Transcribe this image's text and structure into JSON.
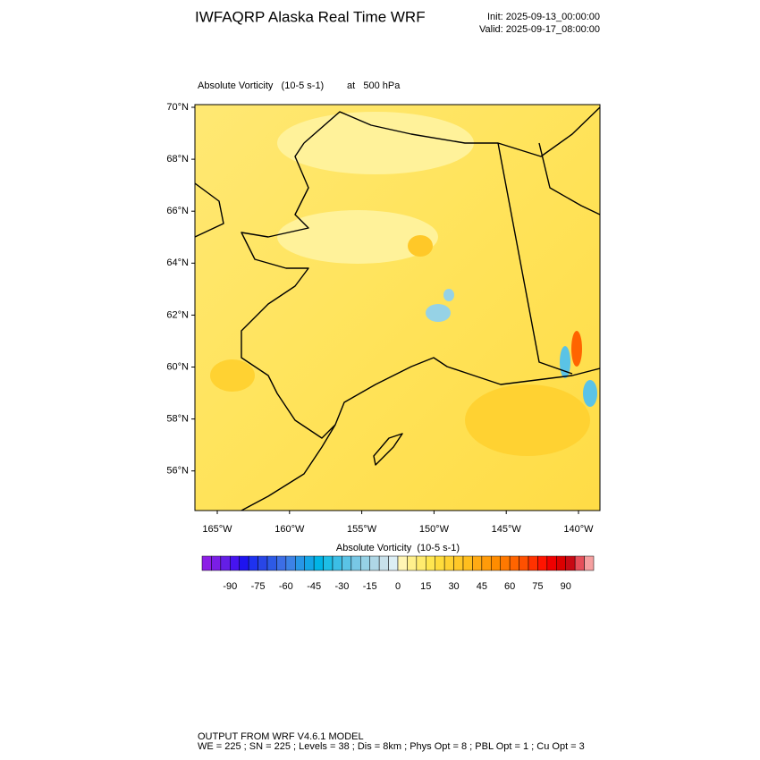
{
  "header": {
    "title": "IWFAQRP Alaska Real Time WRF",
    "init": "Init: 2025-09-13_00:00:00",
    "valid": "Valid: 2025-09-17_08:00:00"
  },
  "map": {
    "field_label": "Absolute Vorticity   (10-5 s-1)",
    "level_label": "at   500 hPa",
    "lat_ticks": [
      {
        "value": 70,
        "label": "70°N"
      },
      {
        "value": 68,
        "label": "68°N"
      },
      {
        "value": 66,
        "label": "66°N"
      },
      {
        "value": 64,
        "label": "64°N"
      },
      {
        "value": 62,
        "label": "62°N"
      },
      {
        "value": 60,
        "label": "60°N"
      },
      {
        "value": 58,
        "label": "58°N"
      },
      {
        "value": 56,
        "label": "56°N"
      }
    ],
    "lon_ticks": [
      {
        "value": -165,
        "label": "165°W"
      },
      {
        "value": -160,
        "label": "160°W"
      },
      {
        "value": -155,
        "label": "155°W"
      },
      {
        "value": -150,
        "label": "150°W"
      },
      {
        "value": -145,
        "label": "145°W"
      },
      {
        "value": -140,
        "label": "140°W"
      }
    ]
  },
  "colorbar": {
    "title": "Absolute Vorticity  (10-5 s-1)",
    "range": [
      -105,
      105
    ],
    "colors": [
      "#8c1ee6",
      "#7a1ee6",
      "#641ee6",
      "#4614f0",
      "#1e14f0",
      "#1e32f0",
      "#2846e6",
      "#2d5ae6",
      "#3c6ee6",
      "#3c82e6",
      "#2896e6",
      "#14a5e6",
      "#00b4e6",
      "#1ebee6",
      "#3cbee6",
      "#5ac3e6",
      "#78c8e6",
      "#96d2e6",
      "#afd7e6",
      "#c8e1eb",
      "#dceef5",
      "#fff5b4",
      "#fff08c",
      "#ffeb6e",
      "#ffe650",
      "#ffdc3c",
      "#ffd232",
      "#ffc828",
      "#ffbe1e",
      "#ffaa14",
      "#ff9b0a",
      "#ff8c00",
      "#ff7800",
      "#ff6400",
      "#ff5000",
      "#ff3200",
      "#ff1400",
      "#f00000",
      "#dc0000",
      "#c80a14",
      "#e6505a",
      "#f5a0a0"
    ],
    "ticks": [
      -90,
      -75,
      -60,
      -45,
      -30,
      -15,
      0,
      15,
      30,
      45,
      60,
      75,
      90
    ]
  },
  "footer": {
    "line1": "OUTPUT FROM WRF V4.6.1 MODEL",
    "line2": "WE = 225 ; SN = 225 ; Levels = 38 ; Dis = 8km ; Phys Opt = 8 ; PBL Opt = 1 ; Cu Opt = 3"
  }
}
